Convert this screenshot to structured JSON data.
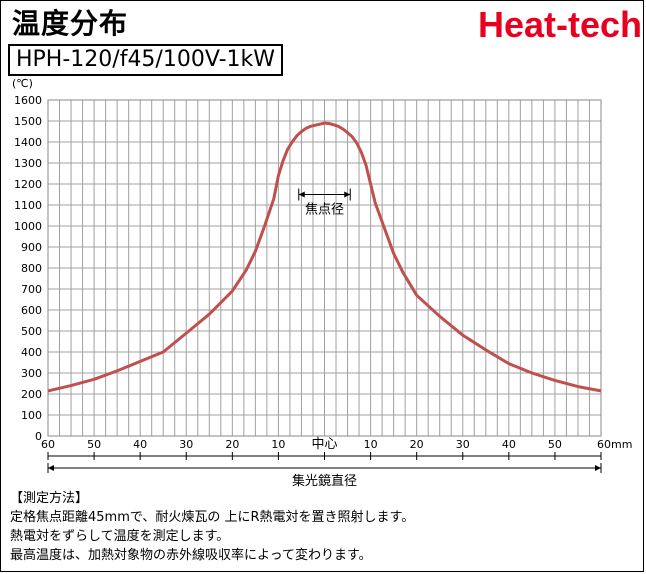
{
  "header": {
    "title": "温度分布",
    "model": "HPH-120/f45/100V-1kW",
    "brand": "Heat-tech",
    "brand_color": "#e8001e"
  },
  "notes": {
    "heading": "【測定方法】",
    "lines": [
      "定格焦点距離45mmで、耐火煉瓦の 上にR熱電対を置き照射します。",
      "熱電対をずらして温度を測定します。",
      "最高温度は、加熱対象物の赤外線吸収率によって変わります。"
    ]
  },
  "chart_data": {
    "type": "line",
    "ylabel": "(℃)",
    "ylim": [
      0,
      1600
    ],
    "yticks": [
      0,
      100,
      200,
      300,
      400,
      500,
      600,
      700,
      800,
      900,
      1000,
      1100,
      1200,
      1300,
      1400,
      1500,
      1600
    ],
    "xlim": [
      -60,
      60
    ],
    "xtick_values": [
      -60,
      -50,
      -40,
      -30,
      -20,
      -10,
      0,
      10,
      20,
      30,
      40,
      50,
      60
    ],
    "xtick_labels": [
      "60",
      "50",
      "40",
      "30",
      "20",
      "10",
      "",
      "10",
      "20",
      "30",
      "40",
      "50",
      "60mm"
    ],
    "center_label": "中心",
    "grid": true,
    "line_color": "#c0504d",
    "series": [
      {
        "x": [
          -60,
          -55,
          -50,
          -45,
          -40,
          -35,
          -30,
          -25,
          -20,
          -17,
          -15,
          -13,
          -11,
          -10,
          -9,
          -8,
          -7,
          -6,
          -5,
          -4,
          -3,
          -2,
          -1,
          0,
          1,
          2,
          3,
          4,
          5,
          6,
          7,
          8,
          9,
          10,
          11,
          13,
          15,
          17,
          20,
          25,
          30,
          35,
          40,
          45,
          50,
          55,
          60
        ],
        "y": [
          215,
          240,
          270,
          310,
          355,
          400,
          490,
          580,
          690,
          790,
          880,
          1000,
          1130,
          1240,
          1310,
          1365,
          1400,
          1430,
          1450,
          1465,
          1475,
          1480,
          1485,
          1490,
          1488,
          1482,
          1475,
          1462,
          1445,
          1425,
          1395,
          1350,
          1290,
          1200,
          1110,
          990,
          870,
          780,
          670,
          570,
          480,
          410,
          345,
          300,
          265,
          235,
          215
        ]
      }
    ],
    "annotations": [
      {
        "type": "range",
        "label": "焦点径",
        "x1": -4.5,
        "x2": 4.5,
        "y": 1150
      },
      {
        "type": "range",
        "label": "集光鏡直径",
        "x1": -60,
        "x2": 60,
        "below_axis": true
      }
    ]
  }
}
